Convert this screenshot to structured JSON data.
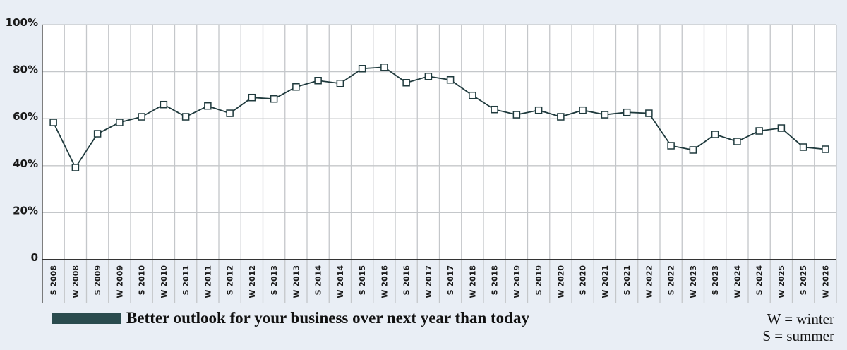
{
  "chart_data": {
    "type": "line",
    "title": "",
    "xlabel": "",
    "ylabel": "",
    "ylim": [
      0,
      100
    ],
    "yticks": [
      0,
      20,
      40,
      60,
      80,
      100
    ],
    "ytick_labels": [
      "0",
      "20%",
      "40%",
      "60%",
      "80%",
      "100%"
    ],
    "grid": true,
    "legend_placement": "bottom-left",
    "categories": [
      "S 2008",
      "W 2008",
      "S 2009",
      "W 2009",
      "S 2010",
      "W 2010",
      "S 2011",
      "W 2011",
      "S 2012",
      "W 2012",
      "S 2013",
      "W 2013",
      "S 2014",
      "W 2014",
      "S 2015",
      "W 2016",
      "S 2016",
      "W 2017",
      "S 2017",
      "W 2018",
      "S 2018",
      "W 2019",
      "S 2019",
      "W 2020",
      "S 2020",
      "W 2021",
      "S 2021",
      "W 2022",
      "S 2022",
      "W 2023",
      "S 2023",
      "W 2024",
      "S 2024",
      "W 2025",
      "S 2025",
      "W 2026"
    ],
    "series": [
      {
        "name": "Better outlook for your business over next year than today",
        "color": "#1f3a3d",
        "values": [
          58.4,
          39.2,
          53.6,
          58.4,
          60.8,
          66,
          60.8,
          65.4,
          62.3,
          69,
          68.4,
          73.5,
          76.2,
          75,
          81.3,
          81.9,
          75.3,
          78,
          76.5,
          69.9,
          63.9,
          61.7,
          63.6,
          60.8,
          63.6,
          61.7,
          62.7,
          62.3,
          48.5,
          46.7,
          53.3,
          50.3,
          54.8,
          56,
          47.9,
          47
        ]
      }
    ],
    "notes": [
      "W = winter",
      "S = summer"
    ]
  }
}
